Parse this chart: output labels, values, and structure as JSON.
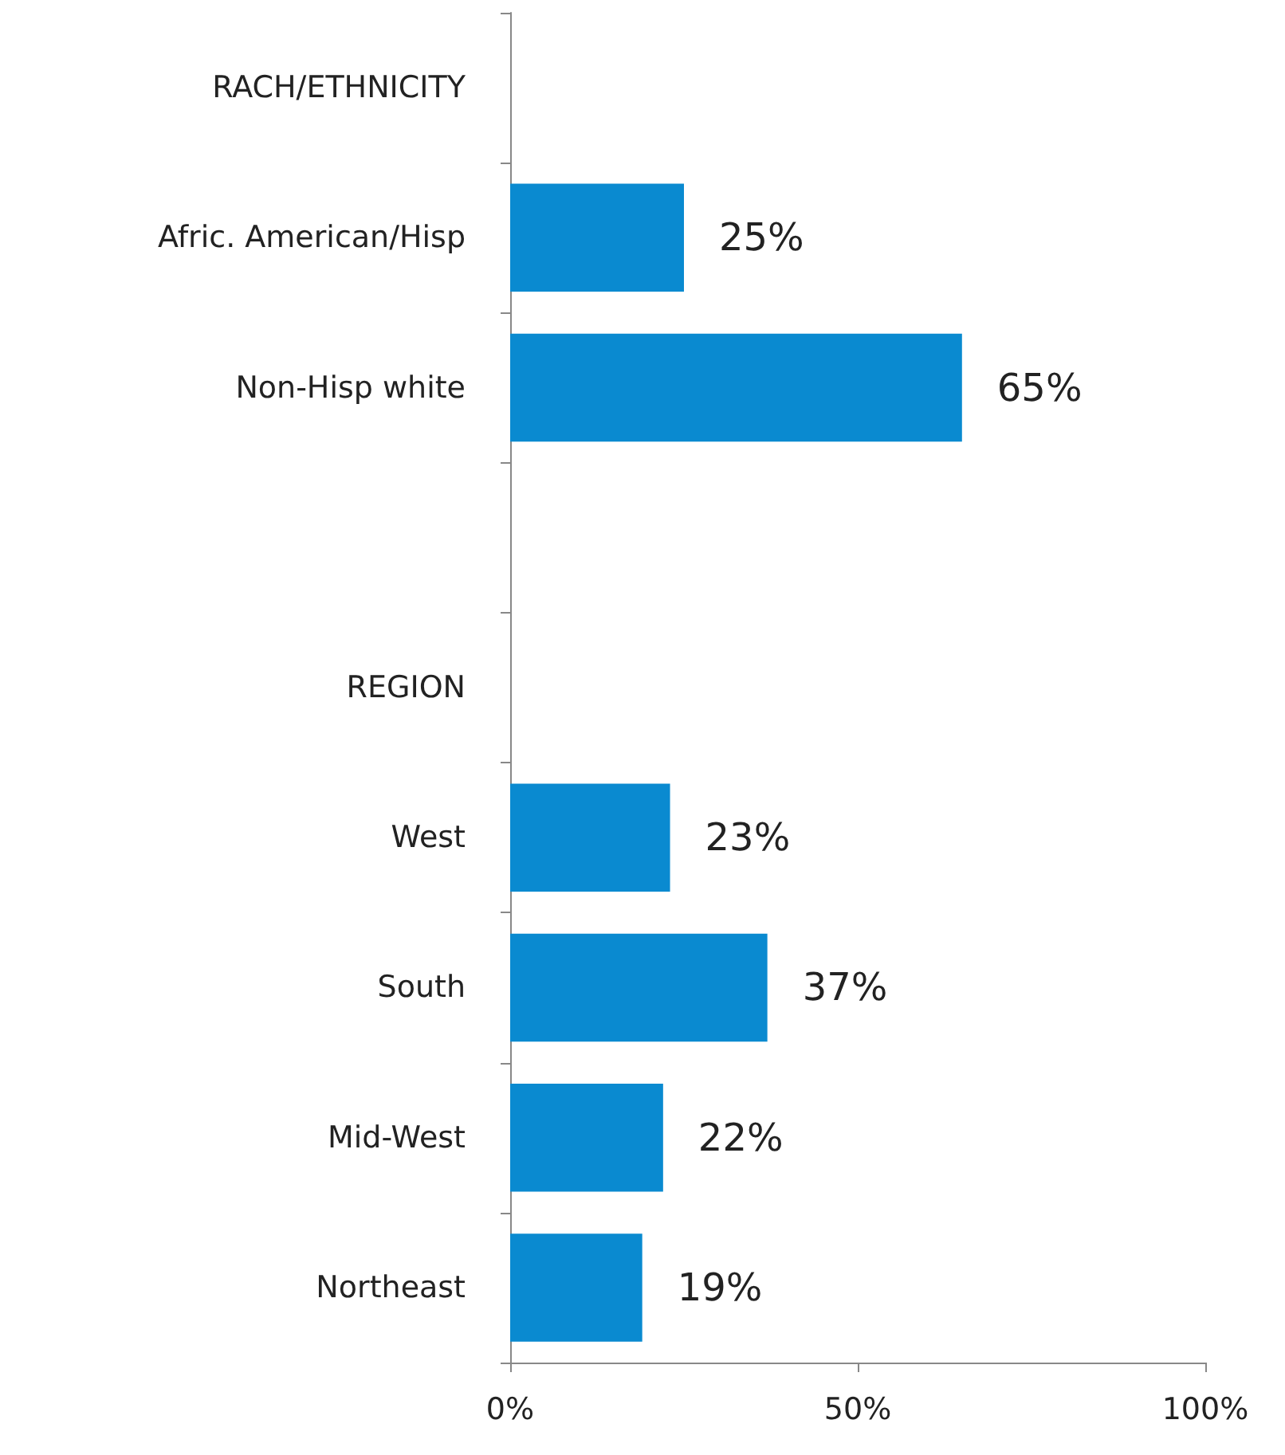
{
  "chart_data": {
    "type": "bar",
    "orientation": "horizontal",
    "categories": [
      "RACH/ETHNICITY",
      "Afric. American/Hisp",
      "Non-Hisp white",
      null,
      "REGION",
      "West",
      "South",
      "Mid-West",
      "Northeast"
    ],
    "values": [
      null,
      25,
      65,
      null,
      null,
      23,
      37,
      22,
      19
    ],
    "value_labels": [
      null,
      "25%",
      "65%",
      null,
      null,
      "23%",
      "37%",
      "22%",
      "19%"
    ],
    "color": "#0a8ad0",
    "xlim": [
      0,
      100
    ],
    "xticks": [
      {
        "value": 0,
        "label": "0%"
      },
      {
        "value": 50,
        "label": "50%"
      },
      {
        "value": 100,
        "label": "100%"
      }
    ]
  }
}
